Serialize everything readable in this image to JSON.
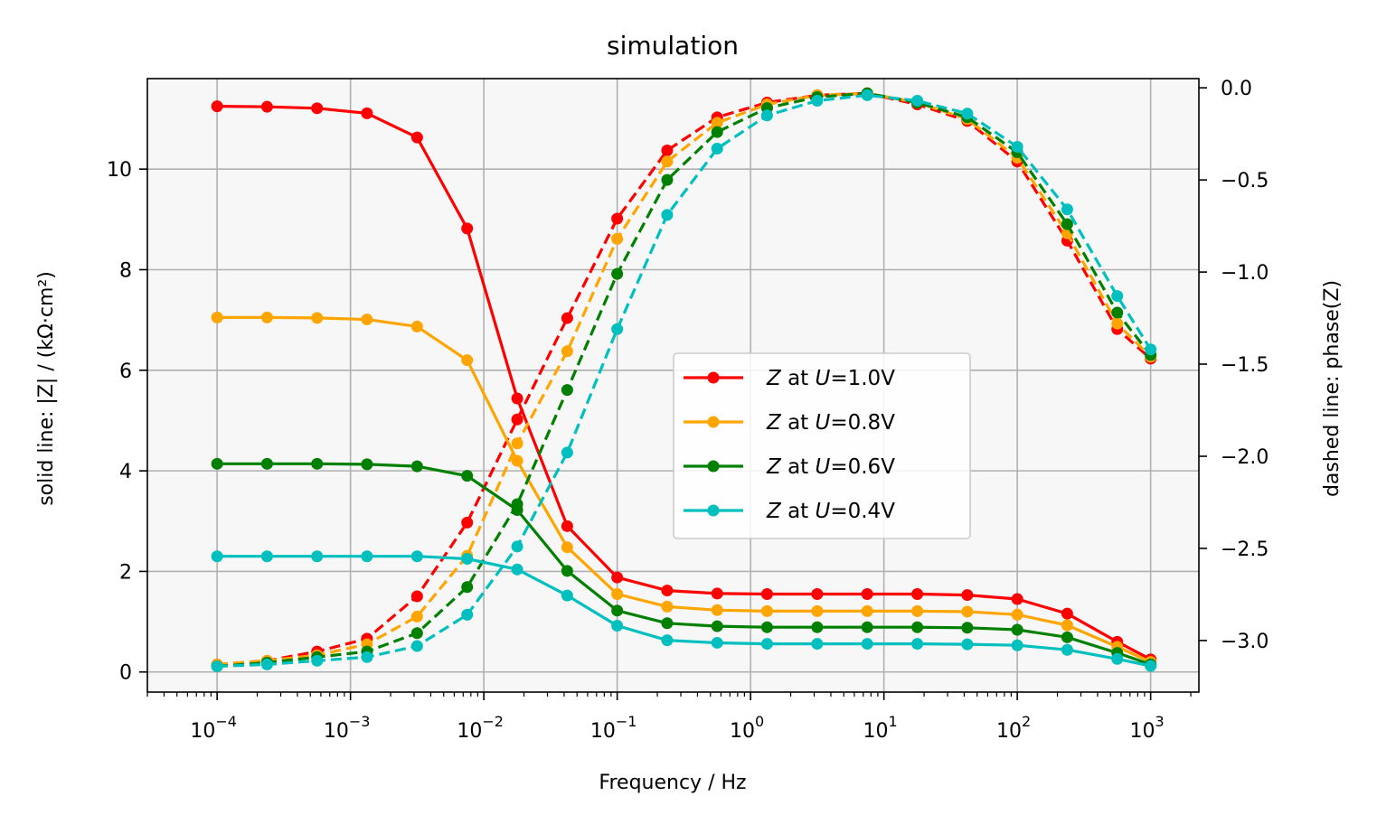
{
  "chart_data": {
    "type": "line",
    "title": "simulation",
    "xlabel": "Frequency / Hz",
    "ylabel_left": "solid line: |Z| / (kΩ·cm²)",
    "ylabel_right": "dashed line: phase(Z)",
    "x_scale": "log",
    "xlim": [
      3e-05,
      2300
    ],
    "ylim_left": [
      -0.4,
      11.8
    ],
    "ylim_right": [
      -3.28,
      0.05
    ],
    "grid": true,
    "legend_position": "center-right",
    "x_ticks": [
      {
        "value": 0.0001,
        "base": "10",
        "exp": "−4"
      },
      {
        "value": 0.001,
        "base": "10",
        "exp": "−3"
      },
      {
        "value": 0.01,
        "base": "10",
        "exp": "−2"
      },
      {
        "value": 0.1,
        "base": "10",
        "exp": "−1"
      },
      {
        "value": 1,
        "base": "10",
        "exp": "0"
      },
      {
        "value": 10,
        "base": "10",
        "exp": "1"
      },
      {
        "value": 100,
        "base": "10",
        "exp": "2"
      },
      {
        "value": 1000,
        "base": "10",
        "exp": "3"
      }
    ],
    "y_left_ticks": [
      {
        "value": 0,
        "label": "0"
      },
      {
        "value": 2,
        "label": "2"
      },
      {
        "value": 4,
        "label": "4"
      },
      {
        "value": 6,
        "label": "6"
      },
      {
        "value": 8,
        "label": "8"
      },
      {
        "value": 10,
        "label": "10"
      }
    ],
    "y_right_ticks": [
      {
        "value": 0.0,
        "label": "0.0"
      },
      {
        "value": -0.5,
        "label": "−0.5"
      },
      {
        "value": -1.0,
        "label": "−1.0"
      },
      {
        "value": -1.5,
        "label": "−1.5"
      },
      {
        "value": -2.0,
        "label": "−2.0"
      },
      {
        "value": -2.5,
        "label": "−2.5"
      },
      {
        "value": -3.0,
        "label": "−3.0"
      }
    ],
    "x": [
      0.0001,
      0.000237,
      0.000562,
      0.00133,
      0.00316,
      0.0075,
      0.0178,
      0.0422,
      0.1,
      0.237,
      0.562,
      1.33,
      3.16,
      7.5,
      17.8,
      42.2,
      100,
      237,
      562,
      1000
    ],
    "series": [
      {
        "name": "Z at U=1.0V",
        "legend": {
          "pre": "Z",
          "mid": " at ",
          "var": "U",
          "post": "=1.0V"
        },
        "color": "#ff0000",
        "magnitude": [
          11.25,
          11.24,
          11.21,
          11.11,
          10.63,
          8.82,
          5.44,
          2.9,
          1.88,
          1.62,
          1.56,
          1.55,
          1.55,
          1.55,
          1.55,
          1.53,
          1.45,
          1.16,
          0.6,
          0.25
        ],
        "phase": [
          -3.13,
          -3.11,
          -3.06,
          -2.99,
          -2.76,
          -2.36,
          -1.8,
          -1.25,
          -0.71,
          -0.34,
          -0.16,
          -0.08,
          -0.04,
          -0.03,
          -0.09,
          -0.18,
          -0.4,
          -0.83,
          -1.31,
          -1.47
        ]
      },
      {
        "name": "Z at U=0.8V",
        "legend": {
          "pre": "Z",
          "mid": " at ",
          "var": "U",
          "post": "=0.8V"
        },
        "color": "#ffa500",
        "magnitude": [
          7.05,
          7.05,
          7.04,
          7.01,
          6.87,
          6.2,
          4.2,
          2.48,
          1.55,
          1.3,
          1.23,
          1.21,
          1.21,
          1.21,
          1.21,
          1.2,
          1.14,
          0.93,
          0.5,
          0.2
        ],
        "phase": [
          -3.13,
          -3.11,
          -3.08,
          -3.02,
          -2.87,
          -2.54,
          -1.93,
          -1.43,
          -0.82,
          -0.4,
          -0.19,
          -0.09,
          -0.04,
          -0.03,
          -0.08,
          -0.17,
          -0.38,
          -0.79,
          -1.28,
          -1.46
        ]
      },
      {
        "name": "Z at U=0.6V",
        "legend": {
          "pre": "Z",
          "mid": " at ",
          "var": "U",
          "post": "=0.6V"
        },
        "color": "#008000",
        "magnitude": [
          4.14,
          4.14,
          4.14,
          4.13,
          4.09,
          3.9,
          3.22,
          2.01,
          1.22,
          0.97,
          0.91,
          0.89,
          0.89,
          0.89,
          0.89,
          0.88,
          0.84,
          0.69,
          0.38,
          0.15
        ],
        "phase": [
          -3.14,
          -3.12,
          -3.09,
          -3.06,
          -2.96,
          -2.71,
          -2.26,
          -1.64,
          -1.01,
          -0.5,
          -0.24,
          -0.11,
          -0.05,
          -0.03,
          -0.08,
          -0.16,
          -0.35,
          -0.74,
          -1.22,
          -1.45
        ]
      },
      {
        "name": "Z at U=0.4V",
        "legend": {
          "pre": "Z",
          "mid": " at ",
          "var": "U",
          "post": "=0.4V"
        },
        "color": "#00bfbf",
        "magnitude": [
          2.3,
          2.3,
          2.3,
          2.3,
          2.3,
          2.25,
          2.04,
          1.52,
          0.92,
          0.63,
          0.58,
          0.56,
          0.56,
          0.56,
          0.56,
          0.55,
          0.53,
          0.44,
          0.26,
          0.12
        ],
        "phase": [
          -3.14,
          -3.13,
          -3.11,
          -3.09,
          -3.03,
          -2.86,
          -2.49,
          -1.98,
          -1.31,
          -0.69,
          -0.33,
          -0.15,
          -0.07,
          -0.04,
          -0.07,
          -0.14,
          -0.32,
          -0.66,
          -1.13,
          -1.42
        ]
      }
    ]
  }
}
